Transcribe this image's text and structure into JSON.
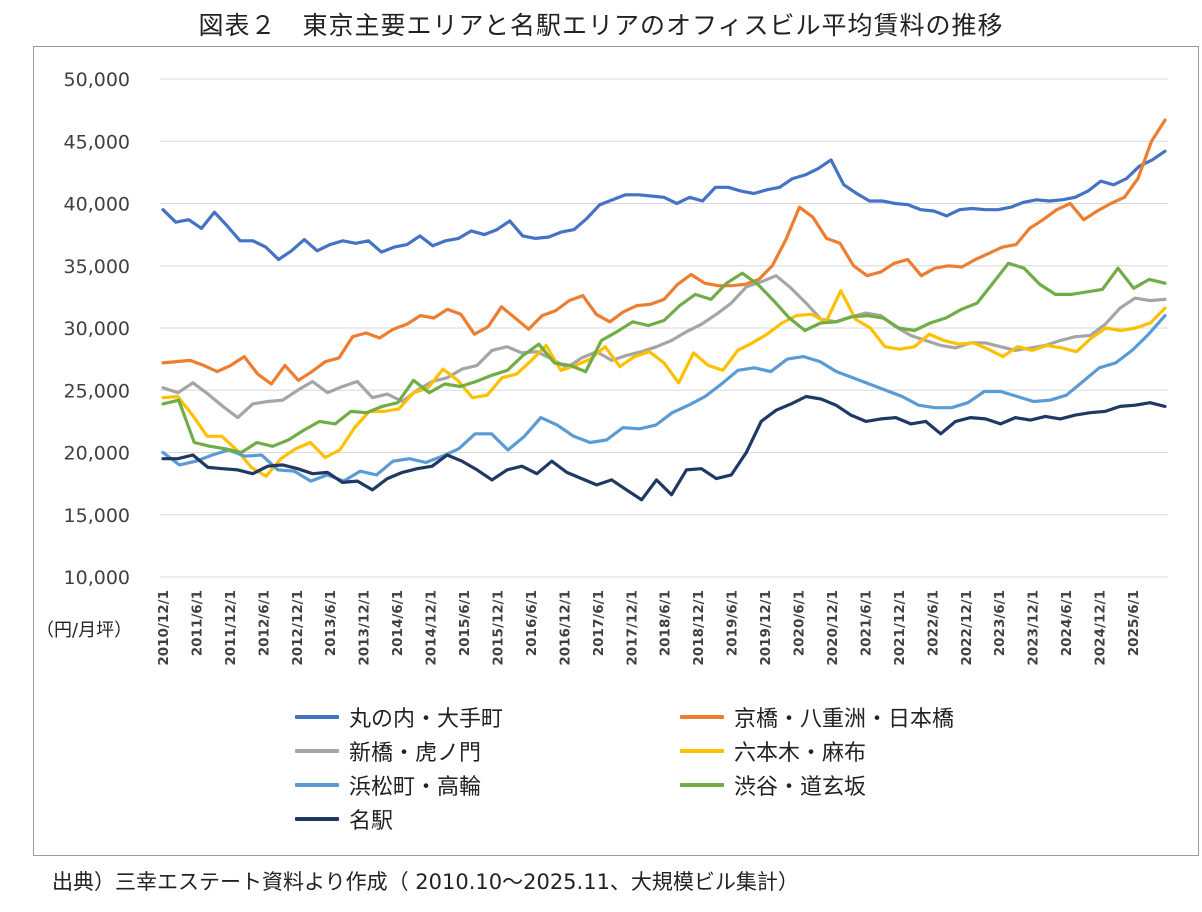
{
  "title": "図表２　東京主要エリアと名駅エリアのオフィスビル平均賃料の推移",
  "unit_label": "（円/月坪）",
  "source": "出典）三幸エステート資料より作成（ 2010.10～2025.11、大規模ビル集計）",
  "chart_data": {
    "type": "line",
    "ylim": [
      10000,
      50000
    ],
    "ytick_labels": [
      "10,000",
      "15,000",
      "20,000",
      "25,000",
      "30,000",
      "35,000",
      "40,000",
      "45,000",
      "50,000"
    ],
    "xtick_labels": [
      "2010/12/1",
      "2011/6/1",
      "2011/12/1",
      "2012/6/1",
      "2012/12/1",
      "2013/6/1",
      "2013/12/1",
      "2014/6/1",
      "2014/12/1",
      "2015/6/1",
      "2015/12/1",
      "2016/6/1",
      "2016/12/1",
      "2017/6/1",
      "2017/12/1",
      "2018/6/1",
      "2018/12/1",
      "2019/6/1",
      "2019/12/1",
      "2020/6/1",
      "2020/12/1",
      "2021/6/1",
      "2021/12/1",
      "2022/6/1",
      "2022/12/1",
      "2023/6/1",
      "2023/12/1",
      "2024/6/1",
      "2024/12/1",
      "2025/6/1"
    ],
    "grid": true,
    "legend_position": "bottom",
    "series": [
      {
        "name": "丸の内・大手町",
        "color": "#4472c4",
        "values": [
          39500,
          38500,
          38700,
          38000,
          39300,
          38200,
          37000,
          37000,
          36500,
          35500,
          36200,
          37100,
          36200,
          36700,
          37000,
          36800,
          37000,
          36100,
          36500,
          36700,
          37400,
          36600,
          37000,
          37200,
          37800,
          37500,
          37900,
          38600,
          37400,
          37200,
          37300,
          37700,
          37900,
          38800,
          39900,
          40300,
          40700,
          40700,
          40600,
          40500,
          40000,
          40500,
          40200,
          41300,
          41300,
          41000,
          40800,
          41100,
          41300,
          42000,
          42300,
          42800,
          43500,
          41500,
          40800,
          40200,
          40200,
          40000,
          39900,
          39500,
          39400,
          39000,
          39500,
          39600,
          39500,
          39500,
          39700,
          40100,
          40300,
          40200,
          40300,
          40500,
          41000,
          41800,
          41500,
          42000,
          43000,
          43500,
          44200
        ]
      },
      {
        "name": "京橋・八重洲・日本橋",
        "color": "#ed7d31",
        "values": [
          27200,
          27300,
          27400,
          27000,
          26500,
          27000,
          27700,
          26300,
          25500,
          27000,
          25800,
          26500,
          27300,
          27600,
          29300,
          29600,
          29200,
          29900,
          30300,
          31000,
          30800,
          31500,
          31100,
          29500,
          30100,
          31700,
          30800,
          29900,
          31000,
          31400,
          32200,
          32600,
          31100,
          30500,
          31300,
          31800,
          31900,
          32300,
          33500,
          34300,
          33600,
          33400,
          33400,
          33500,
          33900,
          35000,
          37100,
          39700,
          38900,
          37200,
          36800,
          35000,
          34200,
          34500,
          35200,
          35500,
          34200,
          34800,
          35000,
          34900,
          35500,
          36000,
          36500,
          36700,
          38000,
          38700,
          39500,
          40000,
          38700,
          39400,
          40000,
          40500,
          42000,
          45000,
          46700
        ]
      },
      {
        "name": "新橋・虎ノ門",
        "color": "#a5a5a5",
        "values": [
          25200,
          24800,
          25600,
          24700,
          23700,
          22800,
          23900,
          24100,
          24200,
          25000,
          25700,
          24800,
          25300,
          25700,
          24400,
          24700,
          24100,
          25000,
          25700,
          26000,
          26700,
          27000,
          28200,
          28500,
          28000,
          28100,
          27500,
          26800,
          27600,
          28100,
          27400,
          27800,
          28100,
          28500,
          29000,
          29700,
          30300,
          31100,
          32000,
          33300,
          33700,
          34200,
          33200,
          32000,
          30700,
          30500,
          30900,
          31200,
          31000,
          30100,
          29400,
          29000,
          28600,
          28400,
          28800,
          28800,
          28500,
          28200,
          28400,
          28600,
          29000,
          29300,
          29400,
          30300,
          31600,
          32400,
          32200,
          32300
        ]
      },
      {
        "name": "六本木・麻布",
        "color": "#ffc000",
        "values": [
          24400,
          24500,
          23000,
          21300,
          21300,
          20200,
          18800,
          18100,
          19500,
          20300,
          20800,
          19600,
          20200,
          22000,
          23300,
          23300,
          23500,
          24800,
          25200,
          26700,
          25800,
          24400,
          24600,
          26000,
          26300,
          27400,
          28600,
          26600,
          27000,
          27500,
          28500,
          26900,
          27700,
          28100,
          27200,
          25600,
          28000,
          27000,
          26600,
          28200,
          28800,
          29500,
          30400,
          31000,
          31100,
          30500,
          33000,
          30700,
          30000,
          28500,
          28300,
          28500,
          29500,
          29000,
          28700,
          28800,
          28300,
          27700,
          28500,
          28200,
          28600,
          28400,
          28100,
          29200,
          30000,
          29800,
          30000,
          30400,
          31600
        ]
      },
      {
        "name": "浜松町・高輪",
        "color": "#5b9bd5",
        "values": [
          20000,
          19000,
          19300,
          19800,
          20200,
          19700,
          19800,
          18600,
          18500,
          17700,
          18200,
          17700,
          18500,
          18200,
          19300,
          19500,
          19200,
          19700,
          20300,
          21500,
          21500,
          20200,
          21300,
          22800,
          22200,
          21300,
          20800,
          21000,
          22000,
          21900,
          22200,
          23200,
          23800,
          24500,
          25500,
          26600,
          26800,
          26500,
          27500,
          27700,
          27300,
          26500,
          26000,
          25500,
          25000,
          24500,
          23800,
          23600,
          23600,
          24000,
          24900,
          24900,
          24500,
          24100,
          24200,
          24600,
          25700,
          26800,
          27200,
          28200,
          29500,
          31000
        ]
      },
      {
        "name": "渋谷・道玄坂",
        "color": "#70ad47",
        "values": [
          23900,
          24200,
          20800,
          20500,
          20300,
          20000,
          20800,
          20500,
          21000,
          21800,
          22500,
          22300,
          23300,
          23200,
          23700,
          24000,
          25800,
          24800,
          25500,
          25300,
          25700,
          26200,
          26600,
          27800,
          28700,
          27200,
          27000,
          26500,
          29000,
          29700,
          30500,
          30200,
          30600,
          31800,
          32700,
          32300,
          33600,
          34400,
          33500,
          32200,
          30800,
          29800,
          30400,
          30500,
          30900,
          31000,
          30800,
          30000,
          29800,
          30400,
          30800,
          31500,
          32000,
          33600,
          35200,
          34800,
          33500,
          32700,
          32700,
          32900,
          33100,
          34800,
          33200,
          33900,
          33600
        ]
      },
      {
        "name": "名駅",
        "color": "#203864",
        "values": [
          19500,
          19500,
          19800,
          18800,
          18700,
          18600,
          18300,
          18900,
          19000,
          18700,
          18300,
          18400,
          17600,
          17700,
          17000,
          17900,
          18400,
          18700,
          18900,
          19800,
          19300,
          18600,
          17800,
          18600,
          18900,
          18300,
          19300,
          18400,
          17900,
          17400,
          17800,
          17000,
          16200,
          17800,
          16600,
          18600,
          18700,
          17900,
          18200,
          20000,
          22500,
          23400,
          23900,
          24500,
          24300,
          23800,
          23000,
          22500,
          22700,
          22800,
          22300,
          22500,
          21500,
          22500,
          22800,
          22700,
          22300,
          22800,
          22600,
          22900,
          22700,
          23000,
          23200,
          23300,
          23700,
          23800,
          24000,
          23700
        ]
      }
    ]
  }
}
